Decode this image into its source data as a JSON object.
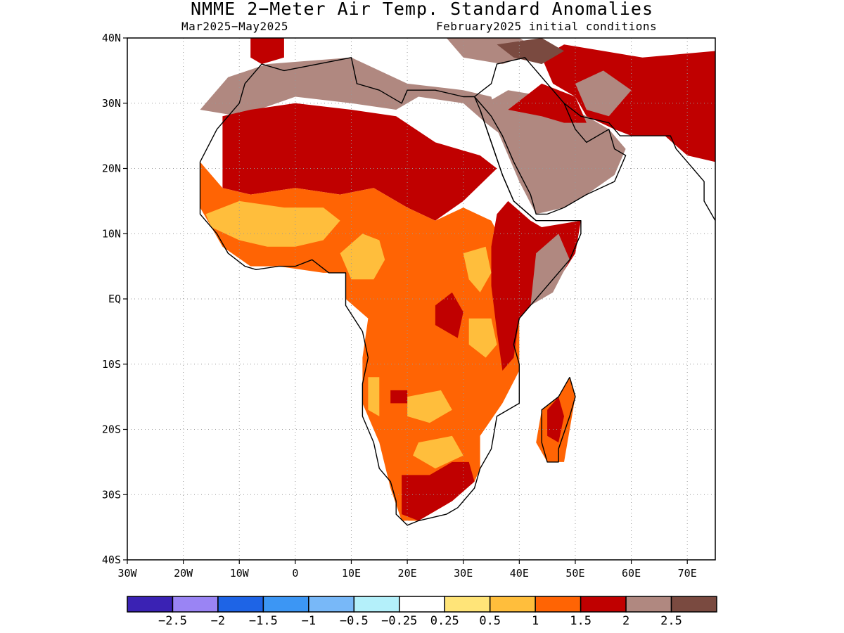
{
  "title": "NMME 2−Meter Air Temp. Standard Anomalies",
  "subtitle_left": "Mar2025−May2025",
  "subtitle_right": "February2025 initial conditions",
  "map": {
    "lon_range": [
      -30,
      75
    ],
    "lat_range": [
      -40,
      40
    ],
    "lat_ticks": [
      {
        "value": 40,
        "label": "40N"
      },
      {
        "value": 30,
        "label": "30N"
      },
      {
        "value": 20,
        "label": "20N"
      },
      {
        "value": 10,
        "label": "10N"
      },
      {
        "value": 0,
        "label": "EQ"
      },
      {
        "value": -10,
        "label": "10S"
      },
      {
        "value": -20,
        "label": "20S"
      },
      {
        "value": -30,
        "label": "30S"
      },
      {
        "value": -40,
        "label": "40S"
      }
    ],
    "lon_ticks": [
      {
        "value": -30,
        "label": "30W"
      },
      {
        "value": -20,
        "label": "20W"
      },
      {
        "value": -10,
        "label": "10W"
      },
      {
        "value": 0,
        "label": "0"
      },
      {
        "value": 10,
        "label": "10E"
      },
      {
        "value": 20,
        "label": "20E"
      },
      {
        "value": 30,
        "label": "30E"
      },
      {
        "value": 40,
        "label": "40E"
      },
      {
        "value": 50,
        "label": "50E"
      },
      {
        "value": 60,
        "label": "60E"
      },
      {
        "value": 70,
        "label": "70E"
      }
    ],
    "grid": true
  },
  "colorbar": {
    "colors": [
      "#3a22b4",
      "#9a84f4",
      "#1e64e6",
      "#3c96f4",
      "#78b8f8",
      "#b4f0fa",
      "#ffffff",
      "#ffe478",
      "#ffbe3c",
      "#ff6404",
      "#c00000",
      "#b08880",
      "#7a4a40"
    ],
    "labels": [
      "−2.5",
      "−2",
      "−1.5",
      "−1",
      "−0.5",
      "−0.25",
      "0.25",
      "0.5",
      "1",
      "1.5",
      "2",
      "2.5"
    ]
  },
  "regions": [
    {
      "name": "north-africa-brown",
      "color": "#b08880",
      "points": [
        [
          -17,
          29
        ],
        [
          -12,
          34
        ],
        [
          -5,
          36
        ],
        [
          10,
          37
        ],
        [
          20,
          33
        ],
        [
          30,
          32
        ],
        [
          35,
          31
        ],
        [
          37,
          25
        ],
        [
          34,
          27
        ],
        [
          30,
          30
        ],
        [
          22,
          31
        ],
        [
          18,
          29
        ],
        [
          10,
          30
        ],
        [
          0,
          31
        ],
        [
          -10,
          28
        ]
      ]
    },
    {
      "name": "sahara-darkred",
      "color": "#c00000",
      "points": [
        [
          -13,
          28
        ],
        [
          -8,
          29
        ],
        [
          0,
          30
        ],
        [
          10,
          29
        ],
        [
          18,
          28
        ],
        [
          25,
          24
        ],
        [
          33,
          22
        ],
        [
          36,
          20
        ],
        [
          30,
          15
        ],
        [
          25,
          12
        ],
        [
          20,
          14
        ],
        [
          14,
          17
        ],
        [
          8,
          16
        ],
        [
          0,
          17
        ],
        [
          -8,
          16
        ],
        [
          -13,
          17
        ]
      ]
    },
    {
      "name": "west-africa-orange",
      "color": "#ff6404",
      "points": [
        [
          -17,
          21
        ],
        [
          -13,
          17
        ],
        [
          -8,
          16
        ],
        [
          0,
          17
        ],
        [
          8,
          16
        ],
        [
          14,
          17
        ],
        [
          20,
          14
        ],
        [
          25,
          12
        ],
        [
          30,
          14
        ],
        [
          35,
          12
        ],
        [
          38,
          7
        ],
        [
          40,
          3
        ],
        [
          40,
          -5
        ],
        [
          40,
          -11
        ],
        [
          37,
          -16
        ],
        [
          33,
          -21
        ],
        [
          33,
          -26
        ],
        [
          32,
          -28
        ],
        [
          28,
          -31
        ],
        [
          22,
          -34
        ],
        [
          19,
          -34
        ],
        [
          17,
          -29
        ],
        [
          15,
          -22
        ],
        [
          12,
          -16
        ],
        [
          12,
          -9
        ],
        [
          13,
          -3
        ],
        [
          9,
          0
        ],
        [
          9,
          4
        ],
        [
          5,
          4
        ],
        [
          -3,
          5
        ],
        [
          -8,
          5
        ],
        [
          -13,
          8
        ],
        [
          -17,
          14
        ]
      ]
    },
    {
      "name": "sahel-yellow",
      "color": "#ffbe3c",
      "points": [
        [
          -16,
          13
        ],
        [
          -10,
          15
        ],
        [
          -2,
          14
        ],
        [
          5,
          14
        ],
        [
          8,
          12
        ],
        [
          5,
          9
        ],
        [
          0,
          8
        ],
        [
          -5,
          8
        ],
        [
          -10,
          9
        ],
        [
          -15,
          11
        ]
      ]
    },
    {
      "name": "central-yellow",
      "color": "#ffbe3c",
      "points": [
        [
          8,
          7
        ],
        [
          12,
          10
        ],
        [
          15,
          9
        ],
        [
          16,
          6
        ],
        [
          14,
          3
        ],
        [
          10,
          3
        ]
      ]
    },
    {
      "name": "east-central-yellow",
      "color": "#ffbe3c",
      "points": [
        [
          30,
          7
        ],
        [
          34,
          8
        ],
        [
          35,
          4
        ],
        [
          33,
          1
        ],
        [
          31,
          3
        ]
      ]
    },
    {
      "name": "lake-region-yellow",
      "color": "#ffbe3c",
      "points": [
        [
          31,
          -3
        ],
        [
          35,
          -3
        ],
        [
          36,
          -7
        ],
        [
          34,
          -9
        ],
        [
          31,
          -7
        ]
      ]
    },
    {
      "name": "angola-yellow",
      "color": "#ffbe3c",
      "points": [
        [
          13,
          -12
        ],
        [
          15,
          -12
        ],
        [
          15,
          -18
        ],
        [
          13,
          -17
        ]
      ]
    },
    {
      "name": "zambia-yellow",
      "color": "#ffbe3c",
      "points": [
        [
          20,
          -15
        ],
        [
          26,
          -14
        ],
        [
          28,
          -17
        ],
        [
          24,
          -19
        ],
        [
          20,
          -18
        ]
      ]
    },
    {
      "name": "botswana-yellow",
      "color": "#ffbe3c",
      "points": [
        [
          22,
          -22
        ],
        [
          28,
          -21
        ],
        [
          30,
          -24
        ],
        [
          25,
          -26
        ],
        [
          21,
          -24
        ]
      ]
    },
    {
      "name": "southern-africa-darkred",
      "color": "#c00000",
      "points": [
        [
          19,
          -27
        ],
        [
          24,
          -27
        ],
        [
          28,
          -25
        ],
        [
          31,
          -25
        ],
        [
          32,
          -28
        ],
        [
          28,
          -31
        ],
        [
          22,
          -34
        ],
        [
          19,
          -33
        ]
      ]
    },
    {
      "name": "congo-darkred",
      "color": "#c00000",
      "points": [
        [
          25,
          -1
        ],
        [
          28,
          1
        ],
        [
          30,
          -2
        ],
        [
          29,
          -6
        ],
        [
          27,
          -5
        ],
        [
          25,
          -4
        ]
      ]
    },
    {
      "name": "angola-darkred",
      "color": "#c00000",
      "points": [
        [
          17,
          -14
        ],
        [
          20,
          -14
        ],
        [
          20,
          -16
        ],
        [
          17,
          -16
        ]
      ]
    },
    {
      "name": "horn-africa-darkred",
      "color": "#c00000",
      "points": [
        [
          36,
          13
        ],
        [
          38,
          15
        ],
        [
          42,
          12
        ],
        [
          44,
          11
        ],
        [
          51,
          12
        ],
        [
          50,
          7
        ],
        [
          47,
          3
        ],
        [
          42,
          -1
        ],
        [
          40,
          -3
        ],
        [
          39,
          -9
        ],
        [
          37,
          -11
        ],
        [
          36,
          -5
        ],
        [
          35,
          2
        ],
        [
          35,
          8
        ]
      ]
    },
    {
      "name": "somalia-brown",
      "color": "#b08880",
      "points": [
        [
          43,
          7
        ],
        [
          47,
          10
        ],
        [
          49,
          6
        ],
        [
          46,
          1
        ],
        [
          42,
          -1
        ]
      ]
    },
    {
      "name": "madagascar-orange",
      "color": "#ff6404",
      "points": [
        [
          49,
          -12
        ],
        [
          50,
          -15
        ],
        [
          48,
          -25
        ],
        [
          45,
          -25
        ],
        [
          43,
          -22
        ],
        [
          44,
          -17
        ],
        [
          47,
          -15
        ]
      ]
    },
    {
      "name": "madagascar-darkred",
      "color": "#c00000",
      "points": [
        [
          47,
          -15
        ],
        [
          48,
          -18
        ],
        [
          47,
          -22
        ],
        [
          45,
          -21
        ],
        [
          45,
          -17
        ]
      ]
    },
    {
      "name": "arabia-brown",
      "color": "#b08880",
      "points": [
        [
          34,
          30
        ],
        [
          38,
          32
        ],
        [
          45,
          31
        ],
        [
          52,
          28
        ],
        [
          56,
          26
        ],
        [
          59,
          23
        ],
        [
          57,
          19
        ],
        [
          52,
          16
        ],
        [
          48,
          14
        ],
        [
          43,
          13
        ],
        [
          40,
          18
        ],
        [
          36,
          26
        ]
      ]
    },
    {
      "name": "arabia-darkred",
      "color": "#c00000",
      "points": [
        [
          38,
          29
        ],
        [
          44,
          33
        ],
        [
          50,
          31
        ],
        [
          52,
          27
        ],
        [
          48,
          27
        ],
        [
          44,
          28
        ]
      ]
    },
    {
      "name": "iran-darkred",
      "color": "#c00000",
      "points": [
        [
          44,
          37
        ],
        [
          48,
          39
        ],
        [
          55,
          38
        ],
        [
          62,
          37
        ],
        [
          75,
          38
        ],
        [
          75,
          21
        ],
        [
          70,
          22
        ],
        [
          66,
          25
        ],
        [
          60,
          25
        ],
        [
          57,
          26
        ],
        [
          52,
          28
        ],
        [
          50,
          31
        ],
        [
          46,
          33
        ]
      ]
    },
    {
      "name": "iran-brown",
      "color": "#b08880",
      "points": [
        [
          50,
          33
        ],
        [
          55,
          35
        ],
        [
          60,
          32
        ],
        [
          56,
          28
        ],
        [
          52,
          29
        ]
      ]
    },
    {
      "name": "turkey-brown",
      "color": "#b08880",
      "points": [
        [
          27,
          40
        ],
        [
          40,
          40
        ],
        [
          44,
          38
        ],
        [
          37,
          36
        ],
        [
          30,
          37
        ]
      ]
    },
    {
      "name": "turkey-darkbrown",
      "color": "#7a4a40",
      "points": [
        [
          36,
          39
        ],
        [
          44,
          40
        ],
        [
          48,
          38
        ],
        [
          44,
          36
        ],
        [
          39,
          37
        ]
      ]
    },
    {
      "name": "iberia-darkred",
      "color": "#c00000",
      "points": [
        [
          -8,
          40
        ],
        [
          -2,
          40
        ],
        [
          -2,
          37
        ],
        [
          -6,
          36
        ],
        [
          -8,
          37
        ]
      ]
    }
  ],
  "boundaries": [
    {
      "name": "africa-coastline",
      "points": [
        [
          -6,
          36
        ],
        [
          -2,
          35
        ],
        [
          10,
          37
        ],
        [
          11,
          33
        ],
        [
          15,
          32
        ],
        [
          19,
          30
        ],
        [
          20,
          32
        ],
        [
          25,
          32
        ],
        [
          30,
          31
        ],
        [
          32,
          31
        ],
        [
          33,
          29
        ],
        [
          35,
          24
        ],
        [
          37,
          19
        ],
        [
          39,
          15
        ],
        [
          43,
          12
        ],
        [
          51,
          12
        ],
        [
          51,
          10
        ],
        [
          49,
          6
        ],
        [
          44,
          1
        ],
        [
          40,
          -3
        ],
        [
          39,
          -7
        ],
        [
          40,
          -10
        ],
        [
          40,
          -16
        ],
        [
          36,
          -18
        ],
        [
          35,
          -23
        ],
        [
          33,
          -26
        ],
        [
          32,
          -29
        ],
        [
          29,
          -32
        ],
        [
          27,
          -33
        ],
        [
          22,
          -34
        ],
        [
          20,
          -34.7
        ],
        [
          18,
          -33
        ],
        [
          18,
          -31
        ],
        [
          17,
          -28
        ],
        [
          15,
          -26
        ],
        [
          14,
          -22
        ],
        [
          12,
          -18
        ],
        [
          12,
          -13
        ],
        [
          13,
          -9
        ],
        [
          12,
          -5
        ],
        [
          9,
          -1
        ],
        [
          9,
          4
        ],
        [
          6,
          4
        ],
        [
          3,
          6
        ],
        [
          0,
          5
        ],
        [
          -3,
          5
        ],
        [
          -7,
          4.5
        ],
        [
          -9,
          5
        ],
        [
          -12,
          7
        ],
        [
          -14,
          10
        ],
        [
          -17,
          13
        ],
        [
          -17,
          15
        ],
        [
          -17,
          21
        ],
        [
          -14,
          26
        ],
        [
          -10,
          30
        ],
        [
          -9,
          33
        ],
        [
          -6,
          36
        ]
      ]
    },
    {
      "name": "arabia-coastline",
      "points": [
        [
          32,
          31
        ],
        [
          35,
          33
        ],
        [
          36,
          36
        ],
        [
          41,
          37
        ],
        [
          48,
          30
        ],
        [
          50,
          26
        ],
        [
          52,
          24
        ],
        [
          56,
          26
        ],
        [
          57,
          23
        ],
        [
          59,
          22
        ],
        [
          57,
          18
        ],
        [
          52,
          16
        ],
        [
          48,
          14
        ],
        [
          45,
          13
        ],
        [
          43,
          13
        ],
        [
          42,
          16
        ],
        [
          39,
          21
        ],
        [
          37,
          25
        ],
        [
          35,
          28
        ],
        [
          34,
          29
        ],
        [
          32,
          31
        ]
      ]
    },
    {
      "name": "madagascar-coastline",
      "points": [
        [
          49,
          -12
        ],
        [
          50,
          -15
        ],
        [
          49,
          -18
        ],
        [
          47,
          -23
        ],
        [
          47,
          -25
        ],
        [
          45,
          -25
        ],
        [
          44,
          -22
        ],
        [
          44,
          -17
        ],
        [
          47,
          -15
        ],
        [
          49,
          -12
        ]
      ]
    },
    {
      "name": "iran-coastline",
      "points": [
        [
          48,
          30
        ],
        [
          51,
          28
        ],
        [
          56,
          27
        ],
        [
          58,
          25
        ],
        [
          62,
          25
        ],
        [
          67,
          25
        ],
        [
          68,
          23
        ],
        [
          70,
          21
        ],
        [
          73,
          18
        ],
        [
          73,
          15
        ],
        [
          75,
          12
        ]
      ]
    },
    {
      "name": "red-sea-west-shore",
      "points": [
        [
          33,
          29
        ],
        [
          35,
          24
        ],
        [
          37,
          19
        ],
        [
          39,
          15
        ],
        [
          43,
          12
        ]
      ]
    }
  ]
}
